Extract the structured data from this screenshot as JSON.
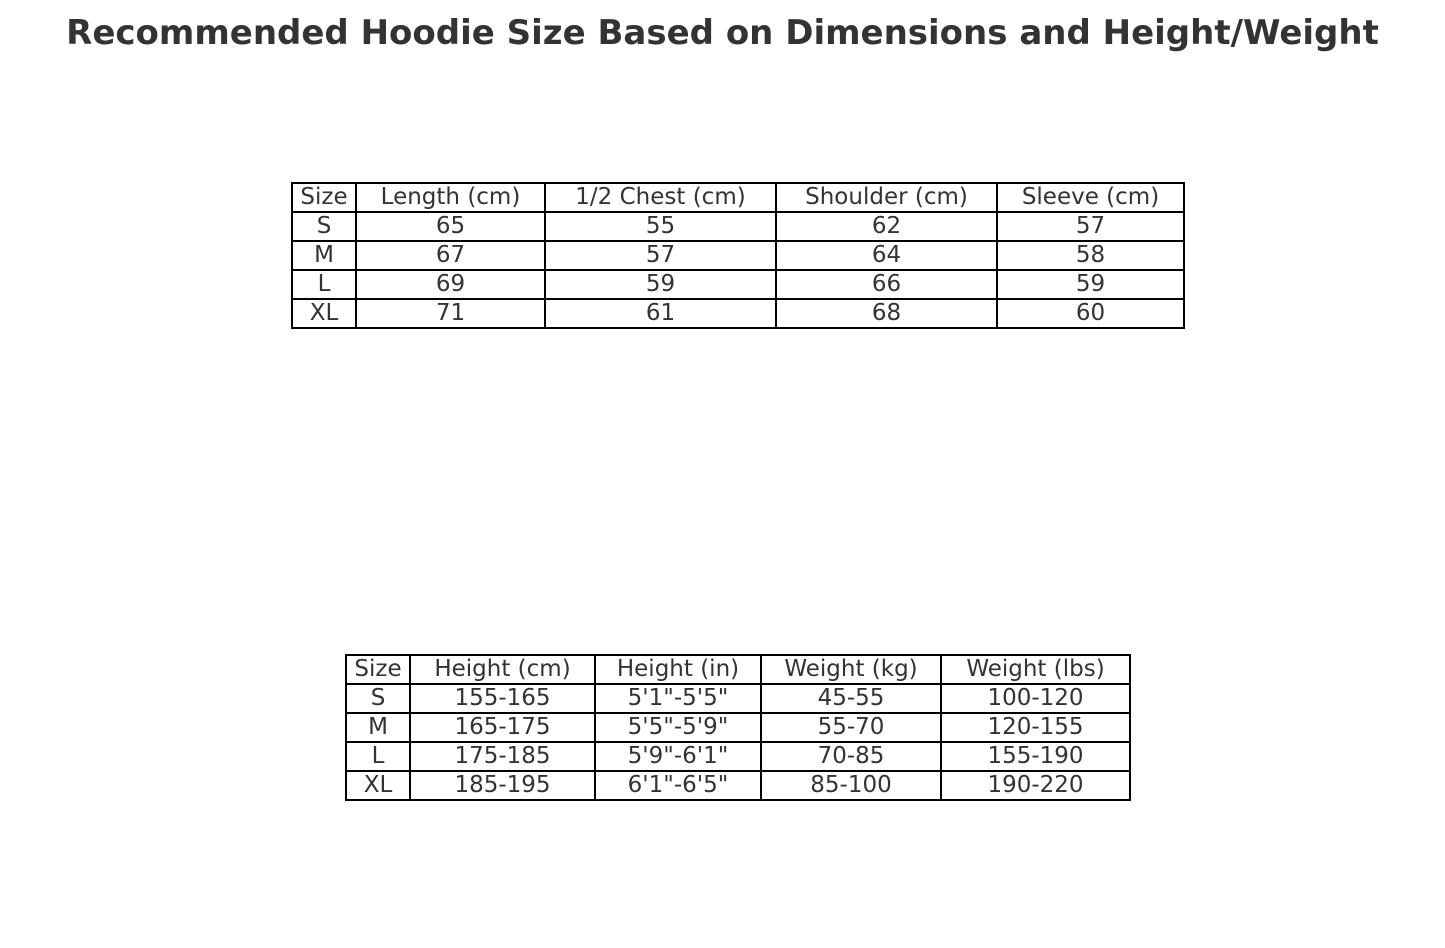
{
  "title": "Recommended Hoodie Size Based on Dimensions and Height/Weight",
  "chart_data": [
    {
      "type": "table",
      "columns": [
        "Size",
        "Length (cm)",
        "1/2 Chest (cm)",
        "Shoulder (cm)",
        "Sleeve (cm)"
      ],
      "rows": [
        [
          "S",
          "65",
          "55",
          "62",
          "57"
        ],
        [
          "M",
          "67",
          "57",
          "64",
          "58"
        ],
        [
          "L",
          "69",
          "59",
          "66",
          "59"
        ],
        [
          "XL",
          "71",
          "61",
          "68",
          "60"
        ]
      ]
    },
    {
      "type": "table",
      "columns": [
        "Size",
        "Height (cm)",
        "Height (in)",
        "Weight (kg)",
        "Weight (lbs)"
      ],
      "rows": [
        [
          "S",
          "155-165",
          "5'1\"-5'5\"",
          "45-55",
          "100-120"
        ],
        [
          "M",
          "165-175",
          "5'5\"-5'9\"",
          "55-70",
          "120-155"
        ],
        [
          "L",
          "175-185",
          "5'9\"-6'1\"",
          "70-85",
          "155-190"
        ],
        [
          "XL",
          "185-195",
          "6'1\"-6'5\"",
          "85-100",
          "190-220"
        ]
      ]
    }
  ]
}
